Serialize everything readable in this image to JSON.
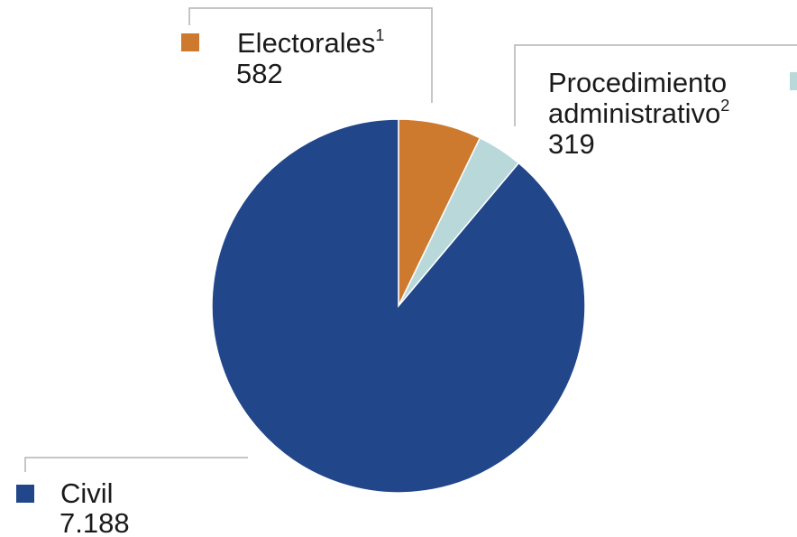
{
  "chart_data": {
    "type": "pie",
    "slices": [
      {
        "label": "Electorales",
        "sup": "1",
        "value": 582,
        "value_label": "582",
        "color": "#cd7a2e"
      },
      {
        "label": "Procedimiento administrativo",
        "label_lines": [
          "Procedimiento",
          "administrativo"
        ],
        "sup": "2",
        "value": 319,
        "value_label": "319",
        "color": "#b8d8da"
      },
      {
        "label": "Civil",
        "sup": "",
        "value": 7188,
        "value_label": "7.188",
        "color": "#21468a"
      }
    ],
    "start_angle": "12 o'clock",
    "direction": "clockwise",
    "legend": "callout labels with colored squares"
  }
}
